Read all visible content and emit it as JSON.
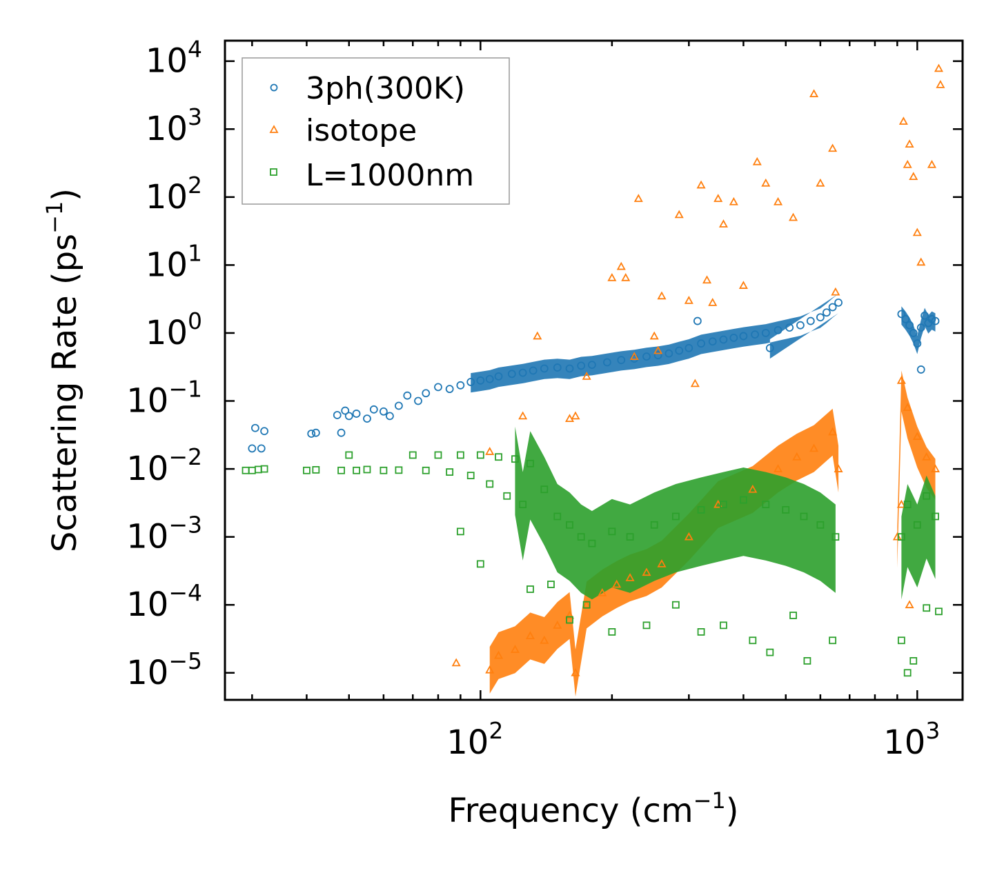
{
  "chart_data": {
    "type": "scatter",
    "title": "",
    "xlabel": "Frequency (cm",
    "xlabel_sup": "−1",
    "xlabel_end": ")",
    "ylabel": "Scattering Rate (ps",
    "ylabel_sup": "−1",
    "ylabel_end": ")",
    "xscale": "log",
    "yscale": "log",
    "xlim": [
      26,
      1270
    ],
    "ylim": [
      4e-06,
      20000
    ],
    "x_ticks": [
      {
        "value": 100,
        "base": "10",
        "exp": "2"
      },
      {
        "value": 1000,
        "base": "10",
        "exp": "3"
      }
    ],
    "y_ticks": [
      {
        "value": 1e-05,
        "base": "10",
        "exp": "−5"
      },
      {
        "value": 0.0001,
        "base": "10",
        "exp": "−4"
      },
      {
        "value": 0.001,
        "base": "10",
        "exp": "−3"
      },
      {
        "value": 0.01,
        "base": "10",
        "exp": "−2"
      },
      {
        "value": 0.1,
        "base": "10",
        "exp": "−1"
      },
      {
        "value": 1,
        "base": "10",
        "exp": "0"
      },
      {
        "value": 10,
        "base": "10",
        "exp": "1"
      },
      {
        "value": 100,
        "base": "10",
        "exp": "2"
      },
      {
        "value": 1000,
        "base": "10",
        "exp": "3"
      },
      {
        "value": 10000,
        "base": "10",
        "exp": "4"
      }
    ],
    "grid": false,
    "legend_position": "top-left",
    "series": [
      {
        "name": "3ph(300K)",
        "marker": "circle",
        "color": "#1f77b4",
        "points": [
          [
            30,
            0.02
          ],
          [
            30.5,
            0.04
          ],
          [
            31.5,
            0.02
          ],
          [
            32,
            0.036
          ],
          [
            41,
            0.033
          ],
          [
            42,
            0.034
          ],
          [
            47,
            0.062
          ],
          [
            48,
            0.034
          ],
          [
            49,
            0.072
          ],
          [
            50,
            0.06
          ],
          [
            52,
            0.065
          ],
          [
            55,
            0.055
          ],
          [
            57,
            0.075
          ],
          [
            60,
            0.07
          ],
          [
            62,
            0.06
          ],
          [
            65,
            0.085
          ],
          [
            68,
            0.12
          ],
          [
            72,
            0.1
          ],
          [
            75,
            0.13
          ],
          [
            80,
            0.16
          ],
          [
            85,
            0.15
          ],
          [
            90,
            0.17
          ],
          [
            95,
            0.19
          ],
          [
            100,
            0.2
          ],
          [
            105,
            0.21
          ],
          [
            110,
            0.23
          ],
          [
            118,
            0.25
          ],
          [
            125,
            0.26
          ],
          [
            132,
            0.28
          ],
          [
            140,
            0.3
          ],
          [
            150,
            0.31
          ],
          [
            160,
            0.3
          ],
          [
            170,
            0.33
          ],
          [
            180,
            0.34
          ],
          [
            195,
            0.37
          ],
          [
            210,
            0.4
          ],
          [
            225,
            0.42
          ],
          [
            240,
            0.45
          ],
          [
            255,
            0.47
          ],
          [
            270,
            0.5
          ],
          [
            285,
            0.55
          ],
          [
            300,
            0.6
          ],
          [
            320,
            0.7
          ],
          [
            340,
            0.75
          ],
          [
            360,
            0.8
          ],
          [
            380,
            0.85
          ],
          [
            400,
            0.9
          ],
          [
            425,
            0.95
          ],
          [
            450,
            1.0
          ],
          [
            480,
            1.1
          ],
          [
            510,
            1.2
          ],
          [
            540,
            1.3
          ],
          [
            570,
            1.5
          ],
          [
            600,
            1.7
          ],
          [
            620,
            2.0
          ],
          [
            640,
            2.4
          ],
          [
            660,
            2.8
          ],
          [
            314,
            1.5
          ],
          [
            460,
            0.6
          ],
          [
            920,
            1.9
          ],
          [
            940,
            1.6
          ],
          [
            960,
            1.3
          ],
          [
            980,
            1.0
          ],
          [
            1000,
            0.7
          ],
          [
            1020,
            1.2
          ],
          [
            1040,
            1.8
          ],
          [
            1060,
            1.4
          ],
          [
            1080,
            1.6
          ],
          [
            1100,
            1.5
          ],
          [
            1020,
            0.29
          ]
        ]
      },
      {
        "name": "isotope",
        "marker": "triangle",
        "color": "#ff7f0e",
        "points": [
          [
            88,
            1.4e-05
          ],
          [
            105,
            1.1e-05
          ],
          [
            110,
            1.8e-05
          ],
          [
            120,
            2.2e-05
          ],
          [
            130,
            3.5e-05
          ],
          [
            140,
            3e-05
          ],
          [
            150,
            5e-05
          ],
          [
            160,
            7e-05
          ],
          [
            165,
            1e-05
          ],
          [
            175,
            0.0001
          ],
          [
            190,
            0.00015
          ],
          [
            205,
            0.0002
          ],
          [
            220,
            0.00025
          ],
          [
            240,
            0.0003
          ],
          [
            260,
            0.0004
          ],
          [
            300,
            0.001
          ],
          [
            350,
            0.003
          ],
          [
            420,
            0.005
          ],
          [
            480,
            0.01
          ],
          [
            530,
            0.015
          ],
          [
            580,
            0.02
          ],
          [
            640,
            0.035
          ],
          [
            660,
            0.01
          ],
          [
            900,
            0.001
          ],
          [
            920,
            0.2
          ],
          [
            950,
            0.08
          ],
          [
            1000,
            0.03
          ],
          [
            1050,
            0.015
          ],
          [
            1100,
            0.01
          ],
          [
            920,
            0.003
          ],
          [
            960,
            0.0001
          ],
          [
            105,
            0.018
          ],
          [
            125,
            0.06
          ],
          [
            135,
            0.9
          ],
          [
            160,
            0.055
          ],
          [
            165,
            0.06
          ],
          [
            175,
            0.23
          ],
          [
            200,
            6.5
          ],
          [
            210,
            9.5
          ],
          [
            215,
            6.5
          ],
          [
            225,
            0.45
          ],
          [
            230,
            95
          ],
          [
            250,
            0.9
          ],
          [
            255,
            0.55
          ],
          [
            260,
            3.5
          ],
          [
            285,
            55
          ],
          [
            300,
            3
          ],
          [
            310,
            0.18
          ],
          [
            320,
            150
          ],
          [
            330,
            6
          ],
          [
            340,
            2.8
          ],
          [
            350,
            95
          ],
          [
            360,
            40
          ],
          [
            380,
            85
          ],
          [
            400,
            5
          ],
          [
            430,
            330
          ],
          [
            450,
            160
          ],
          [
            480,
            85
          ],
          [
            520,
            50
          ],
          [
            580,
            3300
          ],
          [
            600,
            160
          ],
          [
            640,
            520
          ],
          [
            650,
            4
          ],
          [
            930,
            1300
          ],
          [
            950,
            300
          ],
          [
            960,
            600
          ],
          [
            980,
            200
          ],
          [
            1000,
            30
          ],
          [
            1020,
            11
          ],
          [
            1080,
            300
          ],
          [
            1120,
            7800
          ],
          [
            1130,
            4500
          ]
        ]
      },
      {
        "name": "L=1000nm",
        "marker": "square",
        "color": "#2ca02c",
        "points": [
          [
            29,
            0.0095
          ],
          [
            30,
            0.0095
          ],
          [
            31,
            0.0098
          ],
          [
            32,
            0.01
          ],
          [
            40,
            0.0095
          ],
          [
            42,
            0.0097
          ],
          [
            48,
            0.0095
          ],
          [
            50,
            0.016
          ],
          [
            52,
            0.0095
          ],
          [
            55,
            0.0098
          ],
          [
            60,
            0.0095
          ],
          [
            65,
            0.0096
          ],
          [
            70,
            0.016
          ],
          [
            75,
            0.0095
          ],
          [
            80,
            0.016
          ],
          [
            85,
            0.009
          ],
          [
            90,
            0.016
          ],
          [
            95,
            0.008
          ],
          [
            100,
            0.016
          ],
          [
            105,
            0.006
          ],
          [
            110,
            0.015
          ],
          [
            115,
            0.004
          ],
          [
            120,
            0.014
          ],
          [
            125,
            0.003
          ],
          [
            130,
            0.012
          ],
          [
            140,
            0.005
          ],
          [
            150,
            0.002
          ],
          [
            160,
            0.0015
          ],
          [
            170,
            0.001
          ],
          [
            180,
            0.0008
          ],
          [
            200,
            0.0012
          ],
          [
            220,
            0.001
          ],
          [
            250,
            0.0015
          ],
          [
            280,
            0.002
          ],
          [
            320,
            0.0025
          ],
          [
            360,
            0.003
          ],
          [
            400,
            0.0035
          ],
          [
            450,
            0.003
          ],
          [
            500,
            0.0025
          ],
          [
            550,
            0.002
          ],
          [
            600,
            0.0015
          ],
          [
            650,
            0.001
          ],
          [
            920,
            0.001
          ],
          [
            950,
            0.003
          ],
          [
            1000,
            0.0015
          ],
          [
            1050,
            0.004
          ],
          [
            1100,
            0.002
          ],
          [
            90,
            0.0012
          ],
          [
            100,
            0.0004
          ],
          [
            130,
            0.00017
          ],
          [
            145,
            0.0002
          ],
          [
            160,
            6e-05
          ],
          [
            175,
            0.0001
          ],
          [
            200,
            4e-05
          ],
          [
            240,
            5e-05
          ],
          [
            280,
            0.0001
          ],
          [
            320,
            4e-05
          ],
          [
            360,
            5e-05
          ],
          [
            420,
            3e-05
          ],
          [
            460,
            2e-05
          ],
          [
            520,
            7e-05
          ],
          [
            560,
            1.5e-05
          ],
          [
            640,
            3e-05
          ],
          [
            920,
            3e-05
          ],
          [
            950,
            1e-05
          ],
          [
            980,
            1.5e-05
          ],
          [
            1050,
            9e-05
          ],
          [
            1120,
            8e-05
          ]
        ]
      }
    ]
  }
}
